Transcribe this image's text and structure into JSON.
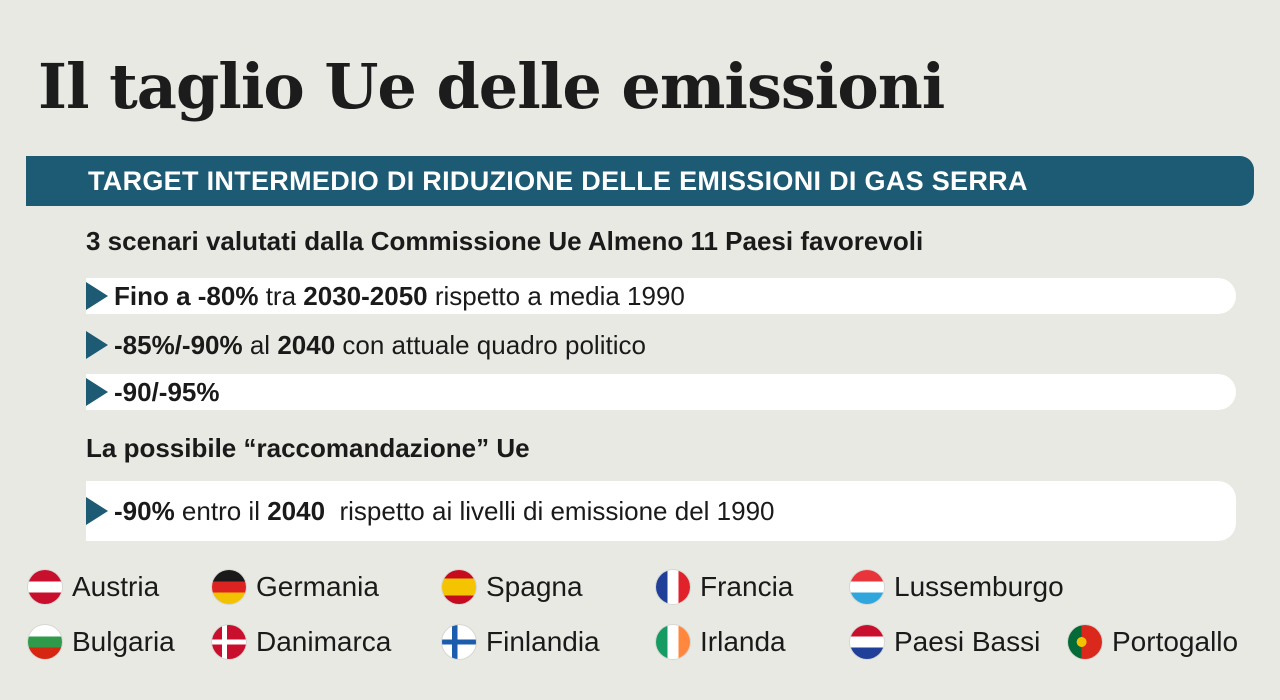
{
  "title": "Il taglio Ue delle emissioni",
  "banner": "TARGET INTERMEDIO DI RIDUZIONE DELLE EMISSIONI DI GAS SERRA",
  "scenari": {
    "heading": "3 scenari valutati dalla Commissione Ue Almeno 11 Paesi favorevoli",
    "items": [
      {
        "b1": "Fino a -80%",
        "t1": " tra ",
        "b2": "2030-2050",
        "t2": " rispetto a media 1990"
      },
      {
        "b1": "-85%/-90%",
        "t1": " al ",
        "b2": "2040",
        "t2": " con attuale quadro politico"
      },
      {
        "b1": "-90/-95%",
        "t1": "",
        "b2": "",
        "t2": ""
      }
    ]
  },
  "raccomandazione": {
    "heading": "La possibile “raccomandazione” Ue",
    "item": {
      "b1": "-90%",
      "t1": " entro il ",
      "b2": "2040",
      "t2": "  rispetto ai livelli di emissione del 1990"
    }
  },
  "countries": [
    {
      "name": "Austria",
      "flag": "austria-flag"
    },
    {
      "name": "Germania",
      "flag": "germany-flag"
    },
    {
      "name": "Spagna",
      "flag": "spain-flag"
    },
    {
      "name": "Francia",
      "flag": "france-flag"
    },
    {
      "name": "Lussemburgo",
      "flag": "luxembourg-flag"
    },
    {
      "name": "Bulgaria",
      "flag": "bulgaria-flag"
    },
    {
      "name": "Danimarca",
      "flag": "denmark-flag"
    },
    {
      "name": "Finlandia",
      "flag": "finland-flag"
    },
    {
      "name": "Irlanda",
      "flag": "ireland-flag"
    },
    {
      "name": "Paesi Bassi",
      "flag": "netherlands-flag"
    },
    {
      "name": "Portogallo",
      "flag": "portugal-flag"
    }
  ],
  "colors": {
    "accent": "#1d5a73",
    "background": "#e9e9e4"
  }
}
